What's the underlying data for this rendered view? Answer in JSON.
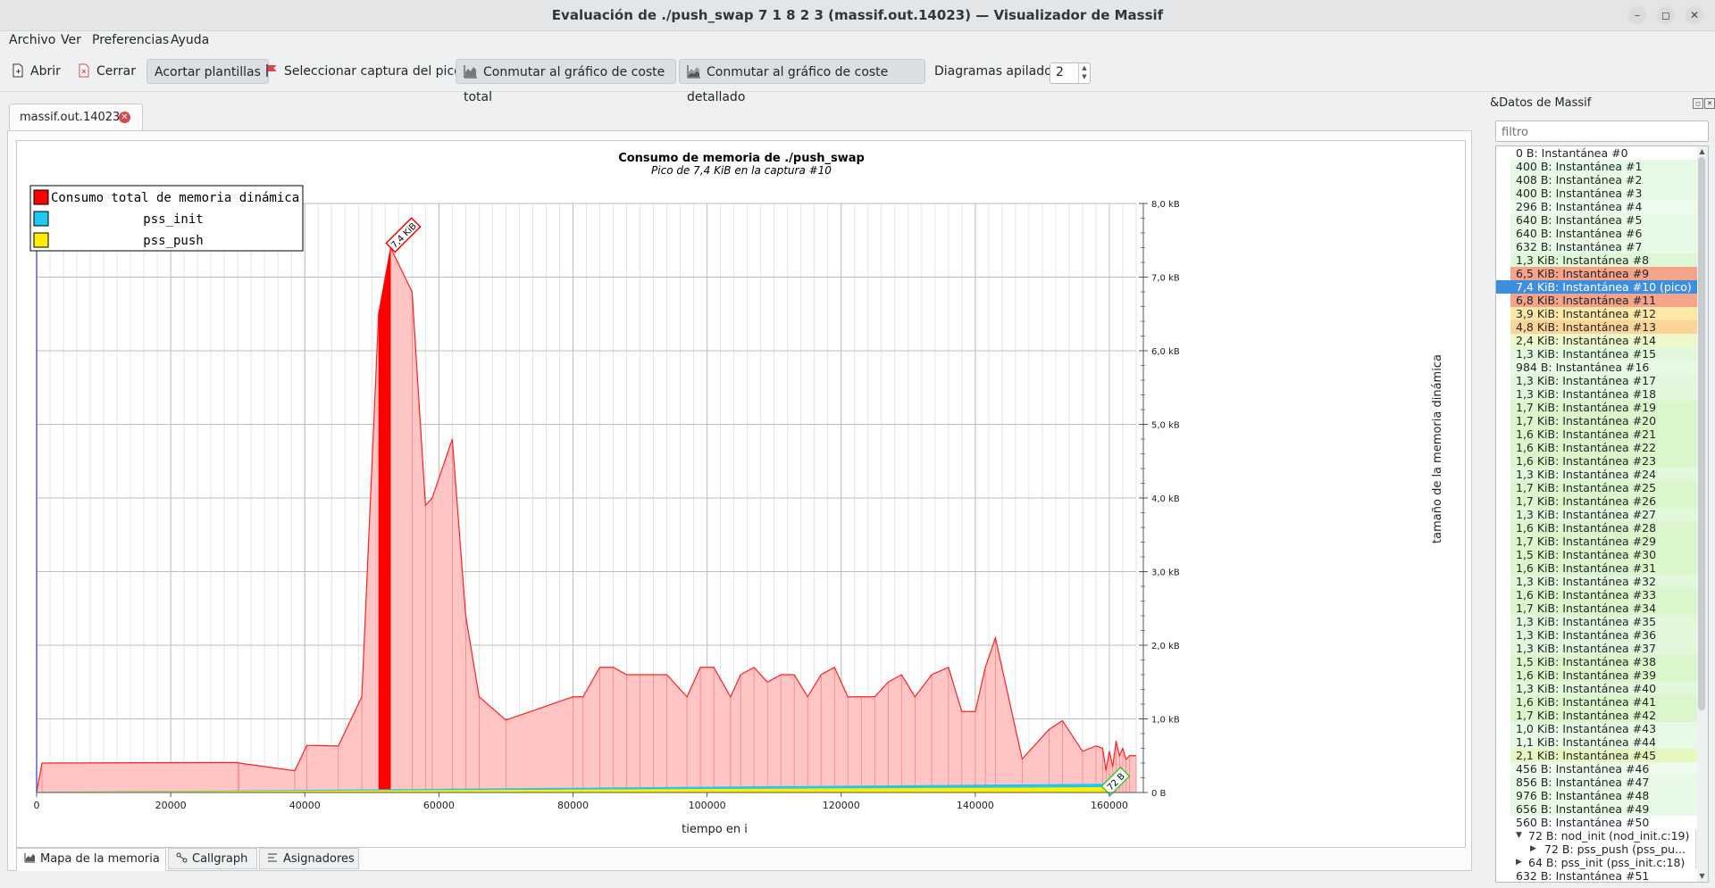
{
  "window": {
    "title": "Evaluación de ./push_swap 7 1 8 2 3 (massif.out.14023) — Visualizador de Massif",
    "minimize": "–",
    "maximize": "◻",
    "close": "✕"
  },
  "menu": [
    "Archivo",
    "Ver",
    "Preferencias",
    "Ayuda"
  ],
  "toolbar": {
    "open": "Abrir",
    "close": "Cerrar",
    "shorten": "Acortar plantillas",
    "select_peak": "Seleccionar captura del pico",
    "toggle_total": "Conmutar al gráfico de coste total",
    "toggle_detailed": "Conmutar al gráfico de coste detallado",
    "stacked_label": "Diagramas apilados:",
    "stacked_value": "2"
  },
  "doc_tab": {
    "label": "massif.out.14023"
  },
  "bottom_tabs": [
    "Mapa de la memoria",
    "Callgraph",
    "Asignadores"
  ],
  "dock": {
    "title": "&Datos de Massif",
    "filter_placeholder": "filtro",
    "snapshots": [
      {
        "label": "0 B: Instantánea #0",
        "color": "#ffffff"
      },
      {
        "label": "400 B: Instantánea #1",
        "color": "#e6fae6"
      },
      {
        "label": "408 B: Instantánea #2",
        "color": "#e6fae6"
      },
      {
        "label": "400 B: Instantánea #3",
        "color": "#e6fae6"
      },
      {
        "label": "296 B: Instantánea #4",
        "color": "#eefcee"
      },
      {
        "label": "640 B: Instantánea #5",
        "color": "#e6fae6"
      },
      {
        "label": "640 B: Instantánea #6",
        "color": "#e6fae6"
      },
      {
        "label": "632 B: Instantánea #7",
        "color": "#e6fae6"
      },
      {
        "label": "1,3 KiB: Instantánea #8",
        "color": "#def7d4"
      },
      {
        "label": "6,5 KiB: Instantánea #9",
        "color": "#f5a38a"
      },
      {
        "label": "7,4 KiB: Instantánea #10 (pico)",
        "color": "#3d8ee0",
        "selected": true
      },
      {
        "label": "6,8 KiB: Instantánea #11",
        "color": "#f5a38a"
      },
      {
        "label": "3,9 KiB: Instantánea #12",
        "color": "#fde8a8"
      },
      {
        "label": "4,8 KiB: Instantánea #13",
        "color": "#fbd49a"
      },
      {
        "label": "2,4 KiB: Instantánea #14",
        "color": "#eef8c8"
      },
      {
        "label": "1,3 KiB: Instantánea #15",
        "color": "#e2f8dc"
      },
      {
        "label": "984 B: Instantánea #16",
        "color": "#e6fae6"
      },
      {
        "label": "1,3 KiB: Instantánea #17",
        "color": "#e2f8dc"
      },
      {
        "label": "1,3 KiB: Instantánea #18",
        "color": "#e2f8dc"
      },
      {
        "label": "1,7 KiB: Instantánea #19",
        "color": "#dcf6cc"
      },
      {
        "label": "1,7 KiB: Instantánea #20",
        "color": "#dcf6cc"
      },
      {
        "label": "1,6 KiB: Instantánea #21",
        "color": "#dcf6cc"
      },
      {
        "label": "1,6 KiB: Instantánea #22",
        "color": "#dcf6cc"
      },
      {
        "label": "1,6 KiB: Instantánea #23",
        "color": "#dcf6cc"
      },
      {
        "label": "1,3 KiB: Instantánea #24",
        "color": "#e2f8dc"
      },
      {
        "label": "1,7 KiB: Instantánea #25",
        "color": "#dcf6cc"
      },
      {
        "label": "1,7 KiB: Instantánea #26",
        "color": "#dcf6cc"
      },
      {
        "label": "1,3 KiB: Instantánea #27",
        "color": "#e2f8dc"
      },
      {
        "label": "1,6 KiB: Instantánea #28",
        "color": "#dcf6cc"
      },
      {
        "label": "1,7 KiB: Instantánea #29",
        "color": "#dcf6cc"
      },
      {
        "label": "1,5 KiB: Instantánea #30",
        "color": "#dcf6cc"
      },
      {
        "label": "1,6 KiB: Instantánea #31",
        "color": "#dcf6cc"
      },
      {
        "label": "1,3 KiB: Instantánea #32",
        "color": "#e2f8dc"
      },
      {
        "label": "1,6 KiB: Instantánea #33",
        "color": "#dcf6cc"
      },
      {
        "label": "1,7 KiB: Instantánea #34",
        "color": "#dcf6cc"
      },
      {
        "label": "1,3 KiB: Instantánea #35",
        "color": "#e2f8dc"
      },
      {
        "label": "1,3 KiB: Instantánea #36",
        "color": "#e2f8dc"
      },
      {
        "label": "1,3 KiB: Instantánea #37",
        "color": "#e2f8dc"
      },
      {
        "label": "1,5 KiB: Instantánea #38",
        "color": "#dcf6cc"
      },
      {
        "label": "1,6 KiB: Instantánea #39",
        "color": "#dcf6cc"
      },
      {
        "label": "1,3 KiB: Instantánea #40",
        "color": "#e2f8dc"
      },
      {
        "label": "1,6 KiB: Instantánea #41",
        "color": "#dcf6cc"
      },
      {
        "label": "1,7 KiB: Instantánea #42",
        "color": "#dcf6cc"
      },
      {
        "label": "1,0 KiB: Instantánea #43",
        "color": "#e6fae6"
      },
      {
        "label": "1,1 KiB: Instantánea #44",
        "color": "#e6fae6"
      },
      {
        "label": "2,1 KiB: Instantánea #45",
        "color": "#e6f7c0"
      },
      {
        "label": "456 B: Instantánea #46",
        "color": "#eefcee"
      },
      {
        "label": "856 B: Instantánea #47",
        "color": "#e6fae6"
      },
      {
        "label": "976 B: Instantánea #48",
        "color": "#e6fae6"
      },
      {
        "label": "656 B: Instantánea #49",
        "color": "#e6fae6"
      },
      {
        "label": "560 B: Instantánea #50",
        "color": "#ffffff",
        "expanded": true
      },
      {
        "label": "72 B: nod_init (nod_init.c:19)",
        "color": "#ffffff",
        "level": 1,
        "expanded": true
      },
      {
        "label": "72 B: pss_push (pss_pu...",
        "color": "#ffffff",
        "level": 2,
        "collapsed": true
      },
      {
        "label": "64 B: pss_init (pss_init.c:18)",
        "color": "#ffffff",
        "level": 1,
        "collapsed": true
      },
      {
        "label": "632 B: Instantánea #51",
        "color": "#ffffff"
      }
    ]
  },
  "chart_data": {
    "type": "area",
    "title": "Consumo de memoria de ./push_swap",
    "subtitle": "Pico de 7,4 KiB en la captura #10",
    "xlabel": "tiempo en i",
    "ylabel": "tamaño de la memoria dinámica",
    "xlim": [
      0,
      164000
    ],
    "ylim": [
      0,
      8000
    ],
    "x_ticks": [
      "0",
      "20000",
      "40000",
      "60000",
      "80000",
      "100000",
      "120000",
      "140000",
      "160000"
    ],
    "x_tick_values": [
      0,
      20000,
      40000,
      60000,
      80000,
      100000,
      120000,
      140000,
      160000
    ],
    "y_ticks": [
      "0 B",
      "1,0 kB",
      "2,0 kB",
      "3,0 kB",
      "4,0 kB",
      "5,0 kB",
      "6,0 kB",
      "7,0 kB",
      "8,0 kB"
    ],
    "y_tick_values": [
      0,
      1000,
      2000,
      3000,
      4000,
      5000,
      6000,
      7000,
      8000
    ],
    "legend": [
      {
        "name": "Consumo total de memoria dinámica",
        "color": "#ff0000"
      },
      {
        "name": "pss_init",
        "color": "#1ec8f0"
      },
      {
        "name": "pss_push",
        "color": "#ffee00"
      }
    ],
    "legend_position": "top-left",
    "grid": true,
    "total": {
      "name": "Consumo total de memoria dinámica",
      "x": [
        0,
        800,
        30000,
        30200,
        38500,
        40300,
        45000,
        48500,
        51000,
        52800,
        56000,
        58000,
        59000,
        62000,
        64000,
        66000,
        70000,
        80000,
        81500,
        84000,
        86000,
        88000,
        90000,
        92000,
        94000,
        97000,
        99000,
        101000,
        103500,
        105000,
        107000,
        109000,
        111000,
        113000,
        115000,
        117000,
        119000,
        121000,
        123000,
        125000,
        127000,
        129000,
        131000,
        133500,
        136000,
        138000,
        140000,
        141500,
        143000,
        147000,
        151000,
        153000,
        156000,
        158000,
        159000,
        159500,
        160000,
        160500,
        161000,
        161500,
        162000,
        162500,
        163000,
        164000
      ],
      "y": [
        0,
        400,
        408,
        400,
        296,
        640,
        632,
        1300,
        6500,
        7400,
        6800,
        3900,
        4000,
        4800,
        2400,
        1300,
        984,
        1300,
        1300,
        1700,
        1700,
        1600,
        1600,
        1600,
        1600,
        1300,
        1700,
        1700,
        1300,
        1600,
        1700,
        1500,
        1600,
        1600,
        1300,
        1600,
        1700,
        1300,
        1300,
        1300,
        1500,
        1600,
        1300,
        1600,
        1700,
        1100,
        1100,
        1700,
        2100,
        456,
        856,
        976,
        560,
        632,
        600,
        300,
        560,
        350,
        700,
        500,
        600,
        450,
        500,
        500
      ]
    },
    "peak_label": "7,4 KiB",
    "end_label": "72 B",
    "pss_init": {
      "name": "pss_init",
      "x": [
        0,
        160000
      ],
      "y": [
        8,
        120
      ]
    },
    "pss_push": {
      "name": "pss_push",
      "x": [
        0,
        160000
      ],
      "y": [
        8,
        72
      ]
    }
  }
}
